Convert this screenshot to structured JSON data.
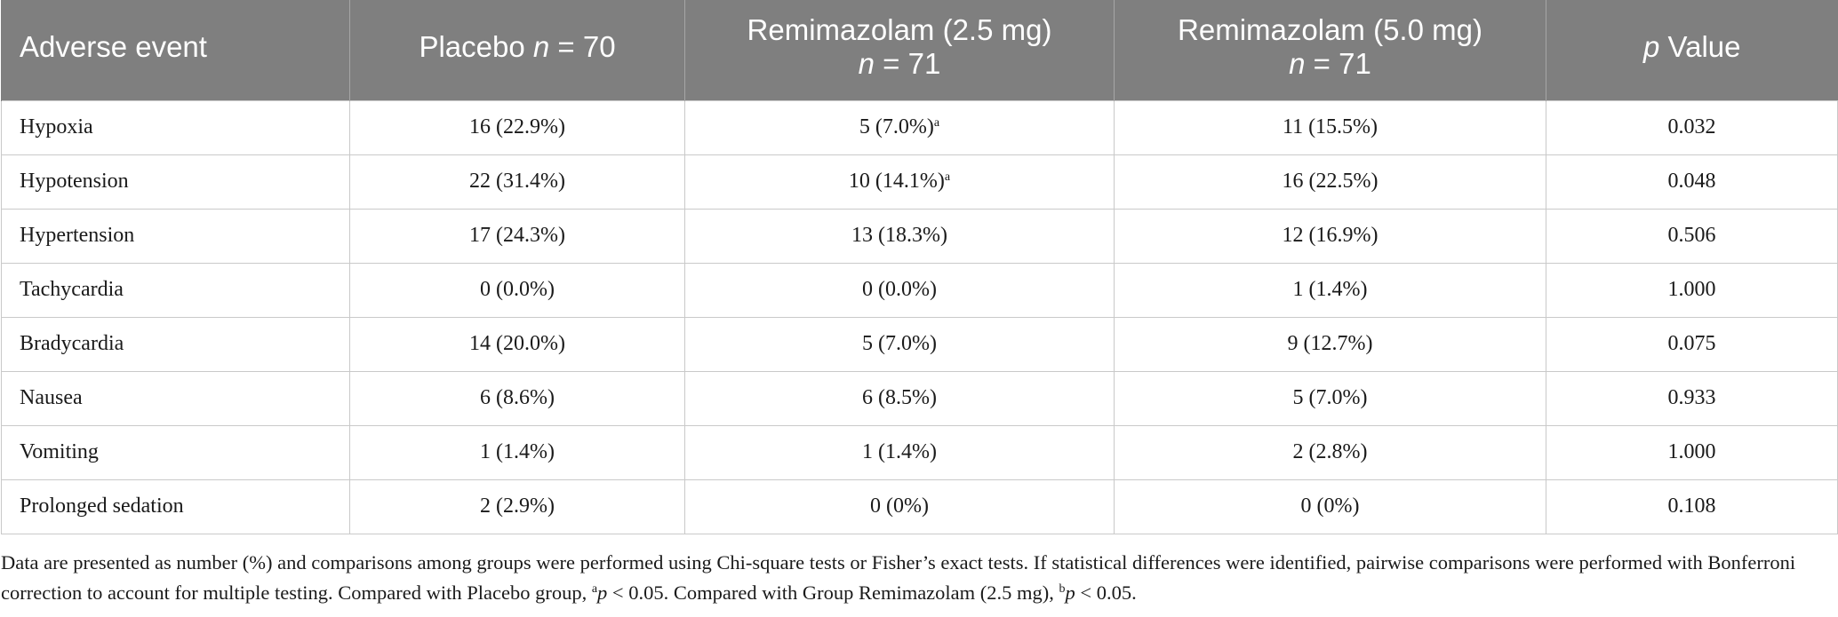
{
  "table": {
    "headers": [
      {
        "line1_pre": "Adverse event",
        "line1_italic": "",
        "line1_post": "",
        "line2_italic": "",
        "line2_post": ""
      },
      {
        "line1_pre": "Placebo ",
        "line1_italic": "n",
        "line1_post": " = 70",
        "line2_italic": "",
        "line2_post": ""
      },
      {
        "line1_pre": "Remimazolam (2.5 mg)",
        "line1_italic": "",
        "line1_post": "",
        "line2_italic": "n",
        "line2_post": " = 71"
      },
      {
        "line1_pre": "Remimazolam (5.0 mg)",
        "line1_italic": "",
        "line1_post": "",
        "line2_italic": "n",
        "line2_post": " = 71"
      },
      {
        "line1_pre": "",
        "line1_italic": "p",
        "line1_post": " Value",
        "line2_italic": "",
        "line2_post": ""
      }
    ],
    "rows": [
      {
        "event": "Hypoxia",
        "placebo": "16 (22.9%)",
        "placebo_sup": "",
        "r25": "5 (7.0%)",
        "r25_sup": "a",
        "r50": "11 (15.5%)",
        "r50_sup": "",
        "p": "0.032"
      },
      {
        "event": "Hypotension",
        "placebo": "22 (31.4%)",
        "placebo_sup": "",
        "r25": "10 (14.1%)",
        "r25_sup": "a",
        "r50": "16 (22.5%)",
        "r50_sup": "",
        "p": "0.048"
      },
      {
        "event": "Hypertension",
        "placebo": "17 (24.3%)",
        "placebo_sup": "",
        "r25": "13 (18.3%)",
        "r25_sup": "",
        "r50": "12 (16.9%)",
        "r50_sup": "",
        "p": "0.506"
      },
      {
        "event": "Tachycardia",
        "placebo": "0 (0.0%)",
        "placebo_sup": "",
        "r25": "0 (0.0%)",
        "r25_sup": "",
        "r50": "1 (1.4%)",
        "r50_sup": "",
        "p": "1.000"
      },
      {
        "event": "Bradycardia",
        "placebo": "14 (20.0%)",
        "placebo_sup": "",
        "r25": "5 (7.0%)",
        "r25_sup": "",
        "r50": "9 (12.7%)",
        "r50_sup": "",
        "p": "0.075"
      },
      {
        "event": "Nausea",
        "placebo": "6 (8.6%)",
        "placebo_sup": "",
        "r25": "6 (8.5%)",
        "r25_sup": "",
        "r50": "5 (7.0%)",
        "r50_sup": "",
        "p": "0.933"
      },
      {
        "event": "Vomiting",
        "placebo": "1 (1.4%)",
        "placebo_sup": "",
        "r25": "1 (1.4%)",
        "r25_sup": "",
        "r50": "2 (2.8%)",
        "r50_sup": "",
        "p": "1.000"
      },
      {
        "event": "Prolonged sedation",
        "placebo": "2 (2.9%)",
        "placebo_sup": "",
        "r25": "0 (0%)",
        "r25_sup": "",
        "r50": "0 (0%)",
        "r50_sup": "",
        "p": "0.108"
      }
    ]
  },
  "footnote": {
    "text1": "Data are presented as number (%) and comparisons among groups were performed using Chi-square tests or Fisher’s exact tests. If statistical differences were identified, pairwise comparisons were performed with Bonferroni correction to account for multiple testing. Compared with Placebo group, ",
    "sup_a": "a",
    "p1": "p",
    "text2": " < 0.05. Compared with Group Remimazolam (2.5 mg), ",
    "sup_b": "b",
    "p2": "p",
    "text3": " < 0.05."
  },
  "colors": {
    "header_bg": "#7f7f7f",
    "header_text": "#ffffff",
    "grid": "#c9c9c9"
  }
}
